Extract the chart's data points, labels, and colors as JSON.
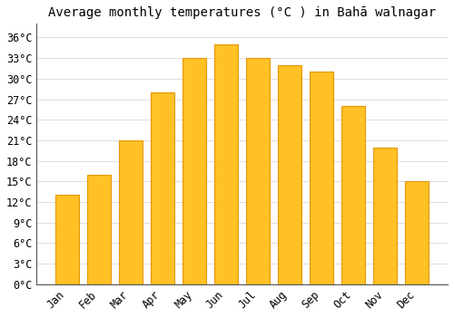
{
  "title": "Average monthly temperatures (°C ) in Bahā walnagar",
  "months": [
    "Jan",
    "Feb",
    "Mar",
    "Apr",
    "May",
    "Jun",
    "Jul",
    "Aug",
    "Sep",
    "Oct",
    "Nov",
    "Dec"
  ],
  "values": [
    13,
    16,
    21,
    28,
    33,
    35,
    33,
    32,
    31,
    26,
    20,
    15
  ],
  "bar_color": "#FFC125",
  "bar_edge_color": "#E8960A",
  "background_color": "#FFFFFF",
  "grid_color": "#DDDDDD",
  "ylim": [
    0,
    38
  ],
  "yticks": [
    0,
    3,
    6,
    9,
    12,
    15,
    18,
    21,
    24,
    27,
    30,
    33,
    36
  ],
  "ylabel_suffix": "°C",
  "title_fontsize": 10,
  "tick_fontsize": 8.5
}
